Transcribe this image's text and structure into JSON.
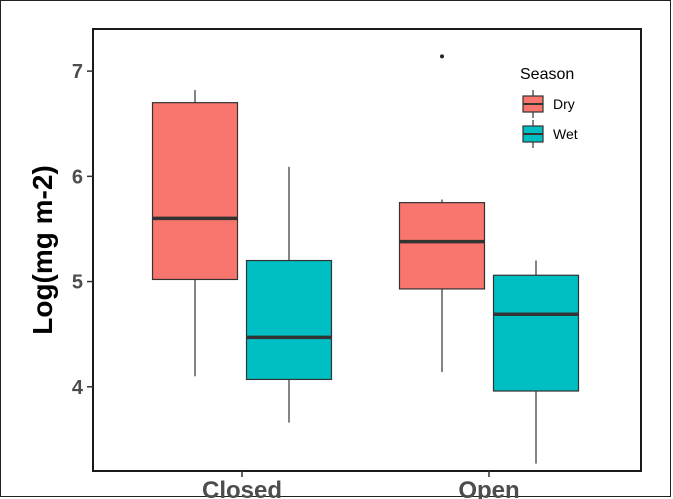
{
  "chart_data": {
    "type": "box",
    "ylabel": "Log(mg m-2)",
    "categories": [
      "Closed",
      "Open"
    ],
    "yticks": [
      4,
      5,
      6,
      7
    ],
    "ylim": [
      3.2,
      7.4
    ],
    "legend": {
      "title": "Season",
      "placement": "top-right"
    },
    "series": [
      {
        "name": "Dry",
        "color": "#F8766D",
        "boxes": [
          {
            "category": "Closed",
            "min": 4.1,
            "q1": 5.02,
            "median": 5.6,
            "q3": 6.7,
            "max": 6.82,
            "outliers": []
          },
          {
            "category": "Open",
            "min": 4.14,
            "q1": 4.93,
            "median": 5.38,
            "q3": 5.75,
            "max": 5.78,
            "outliers": [
              7.14
            ]
          }
        ]
      },
      {
        "name": "Wet",
        "color": "#00BFC4",
        "boxes": [
          {
            "category": "Closed",
            "min": 3.66,
            "q1": 4.07,
            "median": 4.47,
            "q3": 5.2,
            "max": 6.09,
            "outliers": []
          },
          {
            "category": "Open",
            "min": 3.27,
            "q1": 3.96,
            "median": 4.69,
            "q3": 5.06,
            "max": 5.2,
            "outliers": []
          }
        ]
      }
    ]
  }
}
